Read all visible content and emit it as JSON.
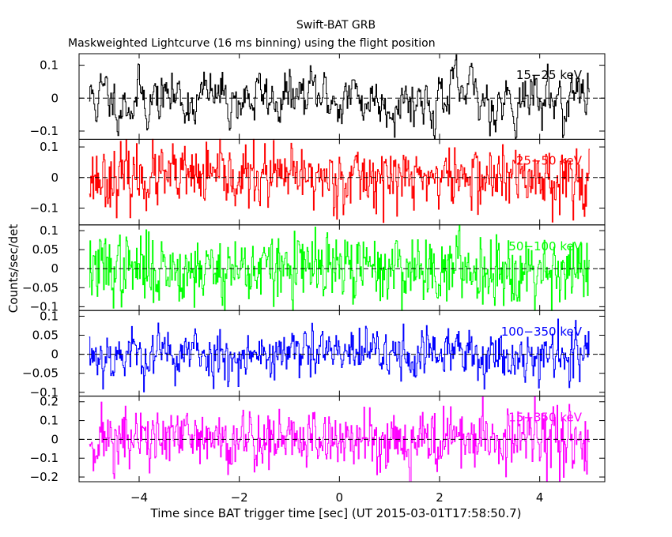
{
  "header": {
    "title": "Swift-BAT GRB",
    "subtitle": "Maskweighted Lightcurve (16 ms binning) using the flight position"
  },
  "chart_data": {
    "type": "line",
    "title": "Swift-BAT GRB",
    "subtitle": "Maskweighted Lightcurve (16 ms binning) using the flight position",
    "xlabel": "Time since BAT trigger time [sec] (UT 2015-03-01T17:58:50.7)",
    "ylabel": "Counts/sec/det",
    "xlim": [
      -5.2,
      5.3
    ],
    "x_ticks": [
      -4,
      -2,
      0,
      2,
      4
    ],
    "x_tick_labels": [
      "−4",
      "−2",
      "0",
      "2",
      "4"
    ],
    "bin_size_s": 0.016,
    "data_range_x": [
      -5.0,
      5.0
    ],
    "grid": false,
    "baseline": "dashed line at 0 in each panel",
    "panels": [
      {
        "band": "15−25 keV",
        "color": "#000000",
        "ylim": [
          -0.125,
          0.135
        ],
        "y_ticks": [
          -0.1,
          0,
          0.1
        ],
        "y_tick_labels": [
          "−0.1",
          "0",
          "0.1"
        ],
        "noise_amplitude": 0.045,
        "smoothness": 0.7,
        "seed": 11
      },
      {
        "band": "25−50 keV",
        "color": "#ff0000",
        "ylim": [
          -0.155,
          0.125
        ],
        "y_ticks": [
          -0.1,
          0,
          0.1
        ],
        "y_tick_labels": [
          "−0.1",
          "0",
          "0.1"
        ],
        "noise_amplitude": 0.05,
        "smoothness": 0.2,
        "seed": 23
      },
      {
        "band": "50−100 keV",
        "color": "#00ff00",
        "ylim": [
          -0.11,
          0.115
        ],
        "y_ticks": [
          -0.1,
          -0.05,
          0,
          0.05,
          0.1
        ],
        "y_tick_labels": [
          "−0.1",
          "−0.05",
          "0",
          "0.05",
          "0.1"
        ],
        "noise_amplitude": 0.045,
        "smoothness": 0.2,
        "seed": 37
      },
      {
        "band": "100−350 keV",
        "color": "#0000ff",
        "ylim": [
          -0.11,
          0.115
        ],
        "y_ticks": [
          -0.1,
          -0.05,
          0,
          0.05,
          0.1
        ],
        "y_tick_labels": [
          "−0.1",
          "−0.05",
          "0",
          "0.05",
          "0.1"
        ],
        "noise_amplitude": 0.035,
        "smoothness": 0.4,
        "seed": 53
      },
      {
        "band": "15−350 keV",
        "color": "#ff00ff",
        "ylim": [
          -0.225,
          0.23
        ],
        "y_ticks": [
          -0.2,
          -0.1,
          0,
          0.1,
          0.2
        ],
        "y_tick_labels": [
          "−0.2",
          "−0.1",
          "0",
          "0.1",
          "0.2"
        ],
        "noise_amplitude": 0.085,
        "smoothness": 0.2,
        "seed": 71
      }
    ]
  }
}
